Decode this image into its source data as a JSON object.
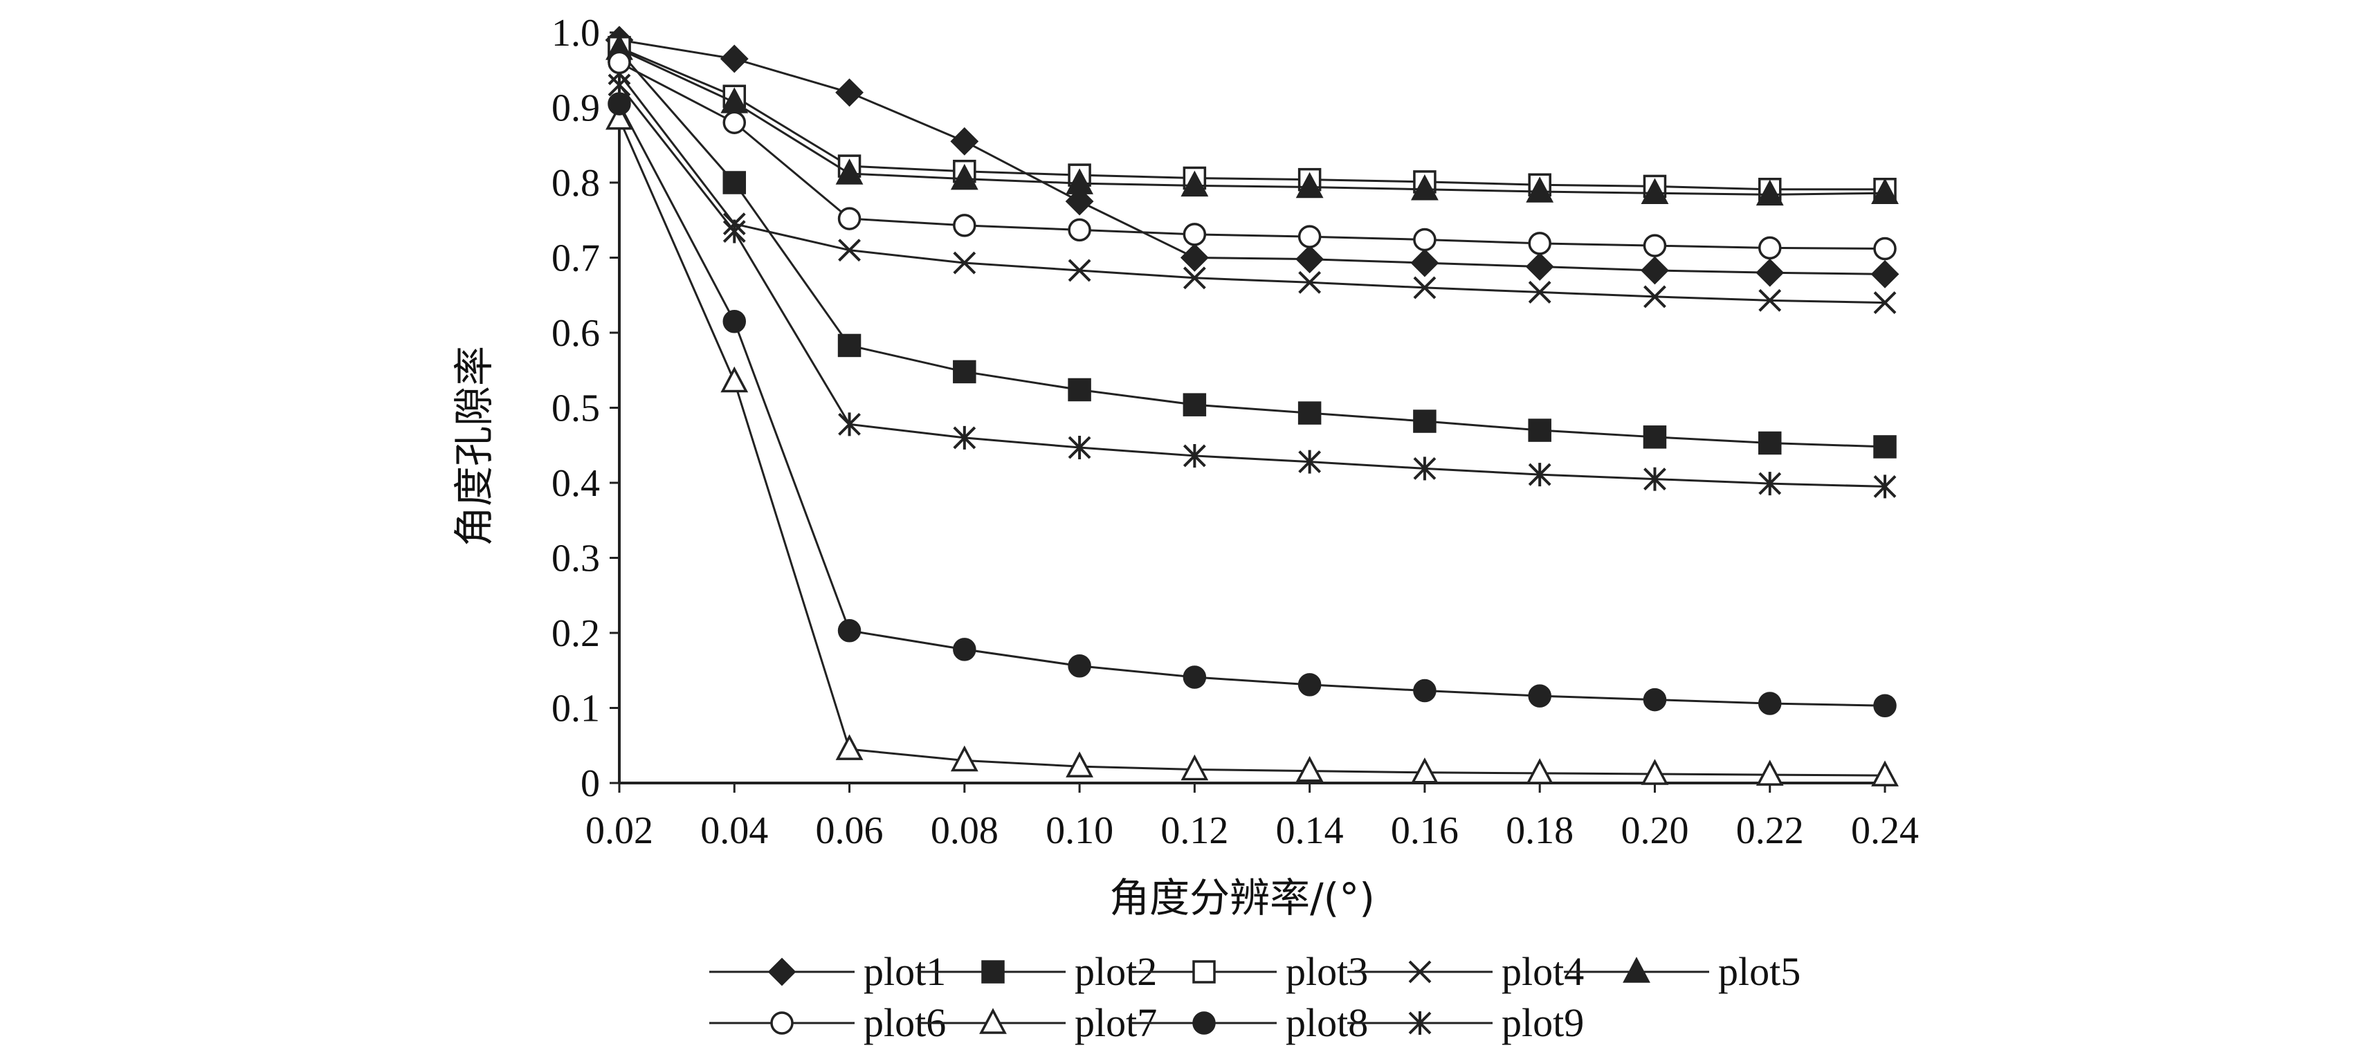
{
  "chart_data": {
    "type": "line",
    "title": "",
    "xlabel": "角度分辨率/(°)",
    "ylabel": "角度孔隙率",
    "x": [
      0.02,
      0.04,
      0.06,
      0.08,
      0.1,
      0.12,
      0.14,
      0.16,
      0.18,
      0.2,
      0.22,
      0.24
    ],
    "x_tick_labels": [
      "0.02",
      "0.04",
      "0.06",
      "0.08",
      "0.10",
      "0.12",
      "0.14",
      "0.16",
      "0.18",
      "0.20",
      "0.22",
      "0.24"
    ],
    "ylim": [
      0,
      1.0
    ],
    "y_ticks": [
      0,
      0.1,
      0.2,
      0.3,
      0.4,
      0.5,
      0.6,
      0.7,
      0.8,
      0.9,
      1.0
    ],
    "y_tick_labels": [
      "0",
      "0.1",
      "0.2",
      "0.3",
      "0.4",
      "0.5",
      "0.6",
      "0.7",
      "0.8",
      "0.9",
      "1.0"
    ],
    "grid": false,
    "legend_position": "bottom",
    "line_color": "#222222",
    "series": [
      {
        "name": "plot1",
        "marker": "diamond-filled",
        "values": [
          0.99,
          0.965,
          0.92,
          0.855,
          0.775,
          0.7,
          0.698,
          0.693,
          0.688,
          0.683,
          0.68,
          0.678
        ]
      },
      {
        "name": "plot2",
        "marker": "square-filled",
        "values": [
          0.975,
          0.8,
          0.583,
          0.548,
          0.524,
          0.504,
          0.493,
          0.482,
          0.47,
          0.461,
          0.453,
          0.448
        ]
      },
      {
        "name": "plot3",
        "marker": "square-open",
        "values": [
          0.98,
          0.915,
          0.822,
          0.815,
          0.81,
          0.806,
          0.804,
          0.801,
          0.797,
          0.795,
          0.791,
          0.791
        ]
      },
      {
        "name": "plot4",
        "marker": "x",
        "values": [
          0.945,
          0.745,
          0.71,
          0.693,
          0.683,
          0.673,
          0.667,
          0.66,
          0.654,
          0.648,
          0.643,
          0.64
        ]
      },
      {
        "name": "plot5",
        "marker": "triangle-filled",
        "values": [
          0.978,
          0.907,
          0.812,
          0.805,
          0.799,
          0.796,
          0.794,
          0.791,
          0.788,
          0.786,
          0.784,
          0.786
        ]
      },
      {
        "name": "plot6",
        "marker": "circle-open",
        "values": [
          0.96,
          0.88,
          0.752,
          0.743,
          0.737,
          0.731,
          0.728,
          0.724,
          0.719,
          0.716,
          0.713,
          0.712
        ]
      },
      {
        "name": "plot7",
        "marker": "triangle-open",
        "values": [
          0.885,
          0.535,
          0.045,
          0.03,
          0.022,
          0.018,
          0.016,
          0.014,
          0.013,
          0.012,
          0.011,
          0.01
        ]
      },
      {
        "name": "plot8",
        "marker": "circle-filled",
        "values": [
          0.905,
          0.615,
          0.203,
          0.178,
          0.156,
          0.141,
          0.131,
          0.123,
          0.116,
          0.111,
          0.106,
          0.103
        ]
      },
      {
        "name": "plot9",
        "marker": "asterisk",
        "values": [
          0.93,
          0.735,
          0.478,
          0.46,
          0.447,
          0.436,
          0.428,
          0.419,
          0.411,
          0.405,
          0.399,
          0.395
        ]
      }
    ]
  }
}
